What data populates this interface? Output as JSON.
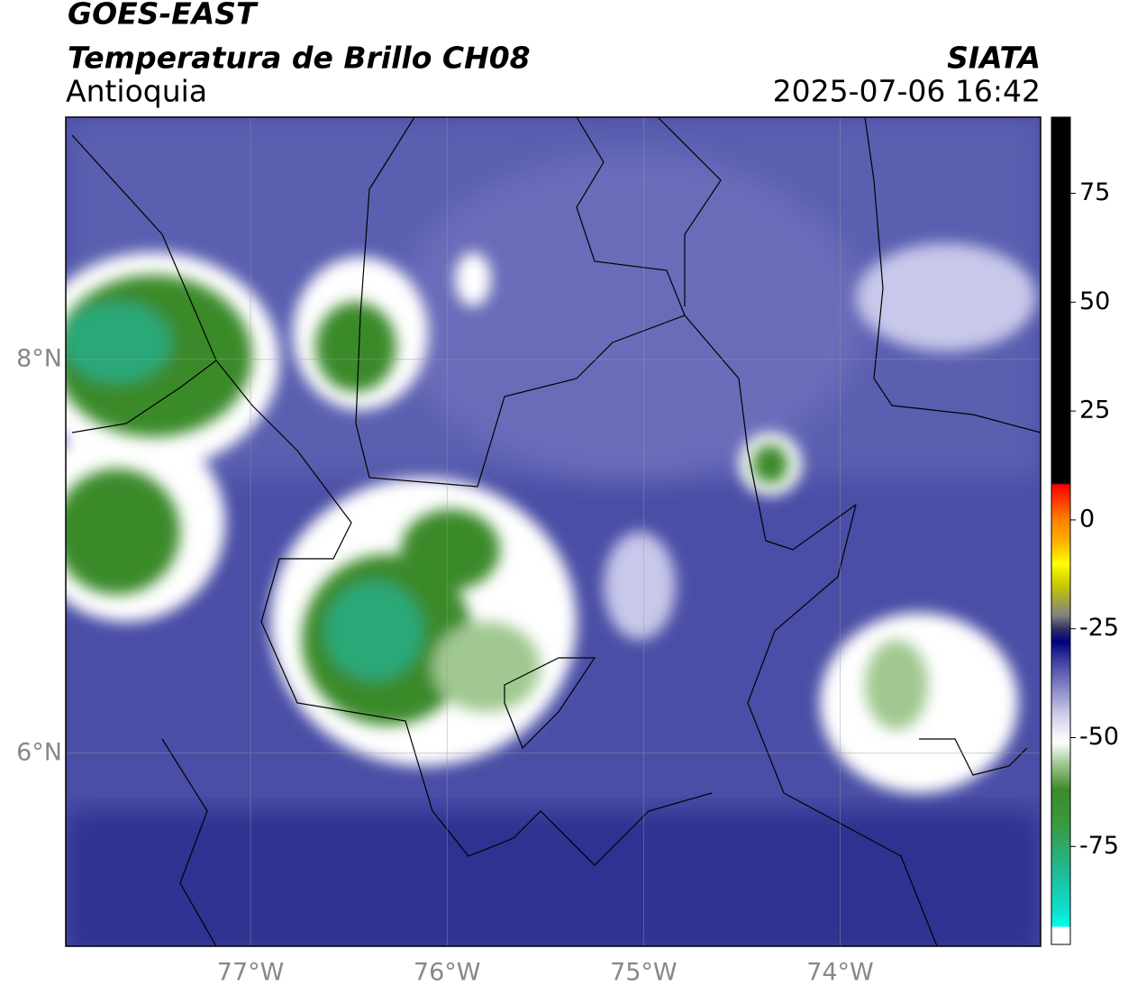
{
  "header": {
    "satellite": "GOES-EAST",
    "product": "Temperatura de Brillo CH08",
    "region": "Antioquia",
    "source": "SIATA",
    "datetime": "2025-07-06 16:42"
  },
  "map": {
    "xlim": [
      -77.94,
      -72.98
    ],
    "ylim": [
      5.02,
      9.23
    ],
    "xticks": [
      {
        "value": -77,
        "label": "77°W"
      },
      {
        "value": -76,
        "label": "76°W"
      },
      {
        "value": -75,
        "label": "75°W"
      },
      {
        "value": -74,
        "label": "74°W"
      }
    ],
    "yticks": [
      {
        "value": 6,
        "label": "6°N"
      },
      {
        "value": 8,
        "label": "8°N"
      }
    ],
    "grid": true
  },
  "colorbar": {
    "lim": [
      -97.5,
      92.5
    ],
    "ticks": [
      -75,
      -50,
      -25,
      0,
      25,
      50,
      75
    ],
    "stops": [
      {
        "value": -93.5,
        "color": "#ffffff"
      },
      {
        "value": -93.4,
        "color": "#00ffee"
      },
      {
        "value": -90,
        "color": "#10e0d0"
      },
      {
        "value": -80,
        "color": "#20b890"
      },
      {
        "value": -70,
        "color": "#3a9a40"
      },
      {
        "value": -62,
        "color": "#3d8a2a"
      },
      {
        "value": -56,
        "color": "#a0c890"
      },
      {
        "value": -51,
        "color": "#ffffff"
      },
      {
        "value": -45,
        "color": "#d0d0ea"
      },
      {
        "value": -38,
        "color": "#8080c0"
      },
      {
        "value": -32,
        "color": "#3a3aa0"
      },
      {
        "value": -28,
        "color": "#000080"
      },
      {
        "value": -25,
        "color": "#303060"
      },
      {
        "value": -22,
        "color": "#808080"
      },
      {
        "value": -15,
        "color": "#c8c800"
      },
      {
        "value": -10,
        "color": "#ffff00"
      },
      {
        "value": -5,
        "color": "#ffb000"
      },
      {
        "value": 0,
        "color": "#ff8000"
      },
      {
        "value": 5,
        "color": "#ff3000"
      },
      {
        "value": 8,
        "color": "#ff0000"
      },
      {
        "value": 8.5,
        "color": "#000000"
      }
    ]
  }
}
